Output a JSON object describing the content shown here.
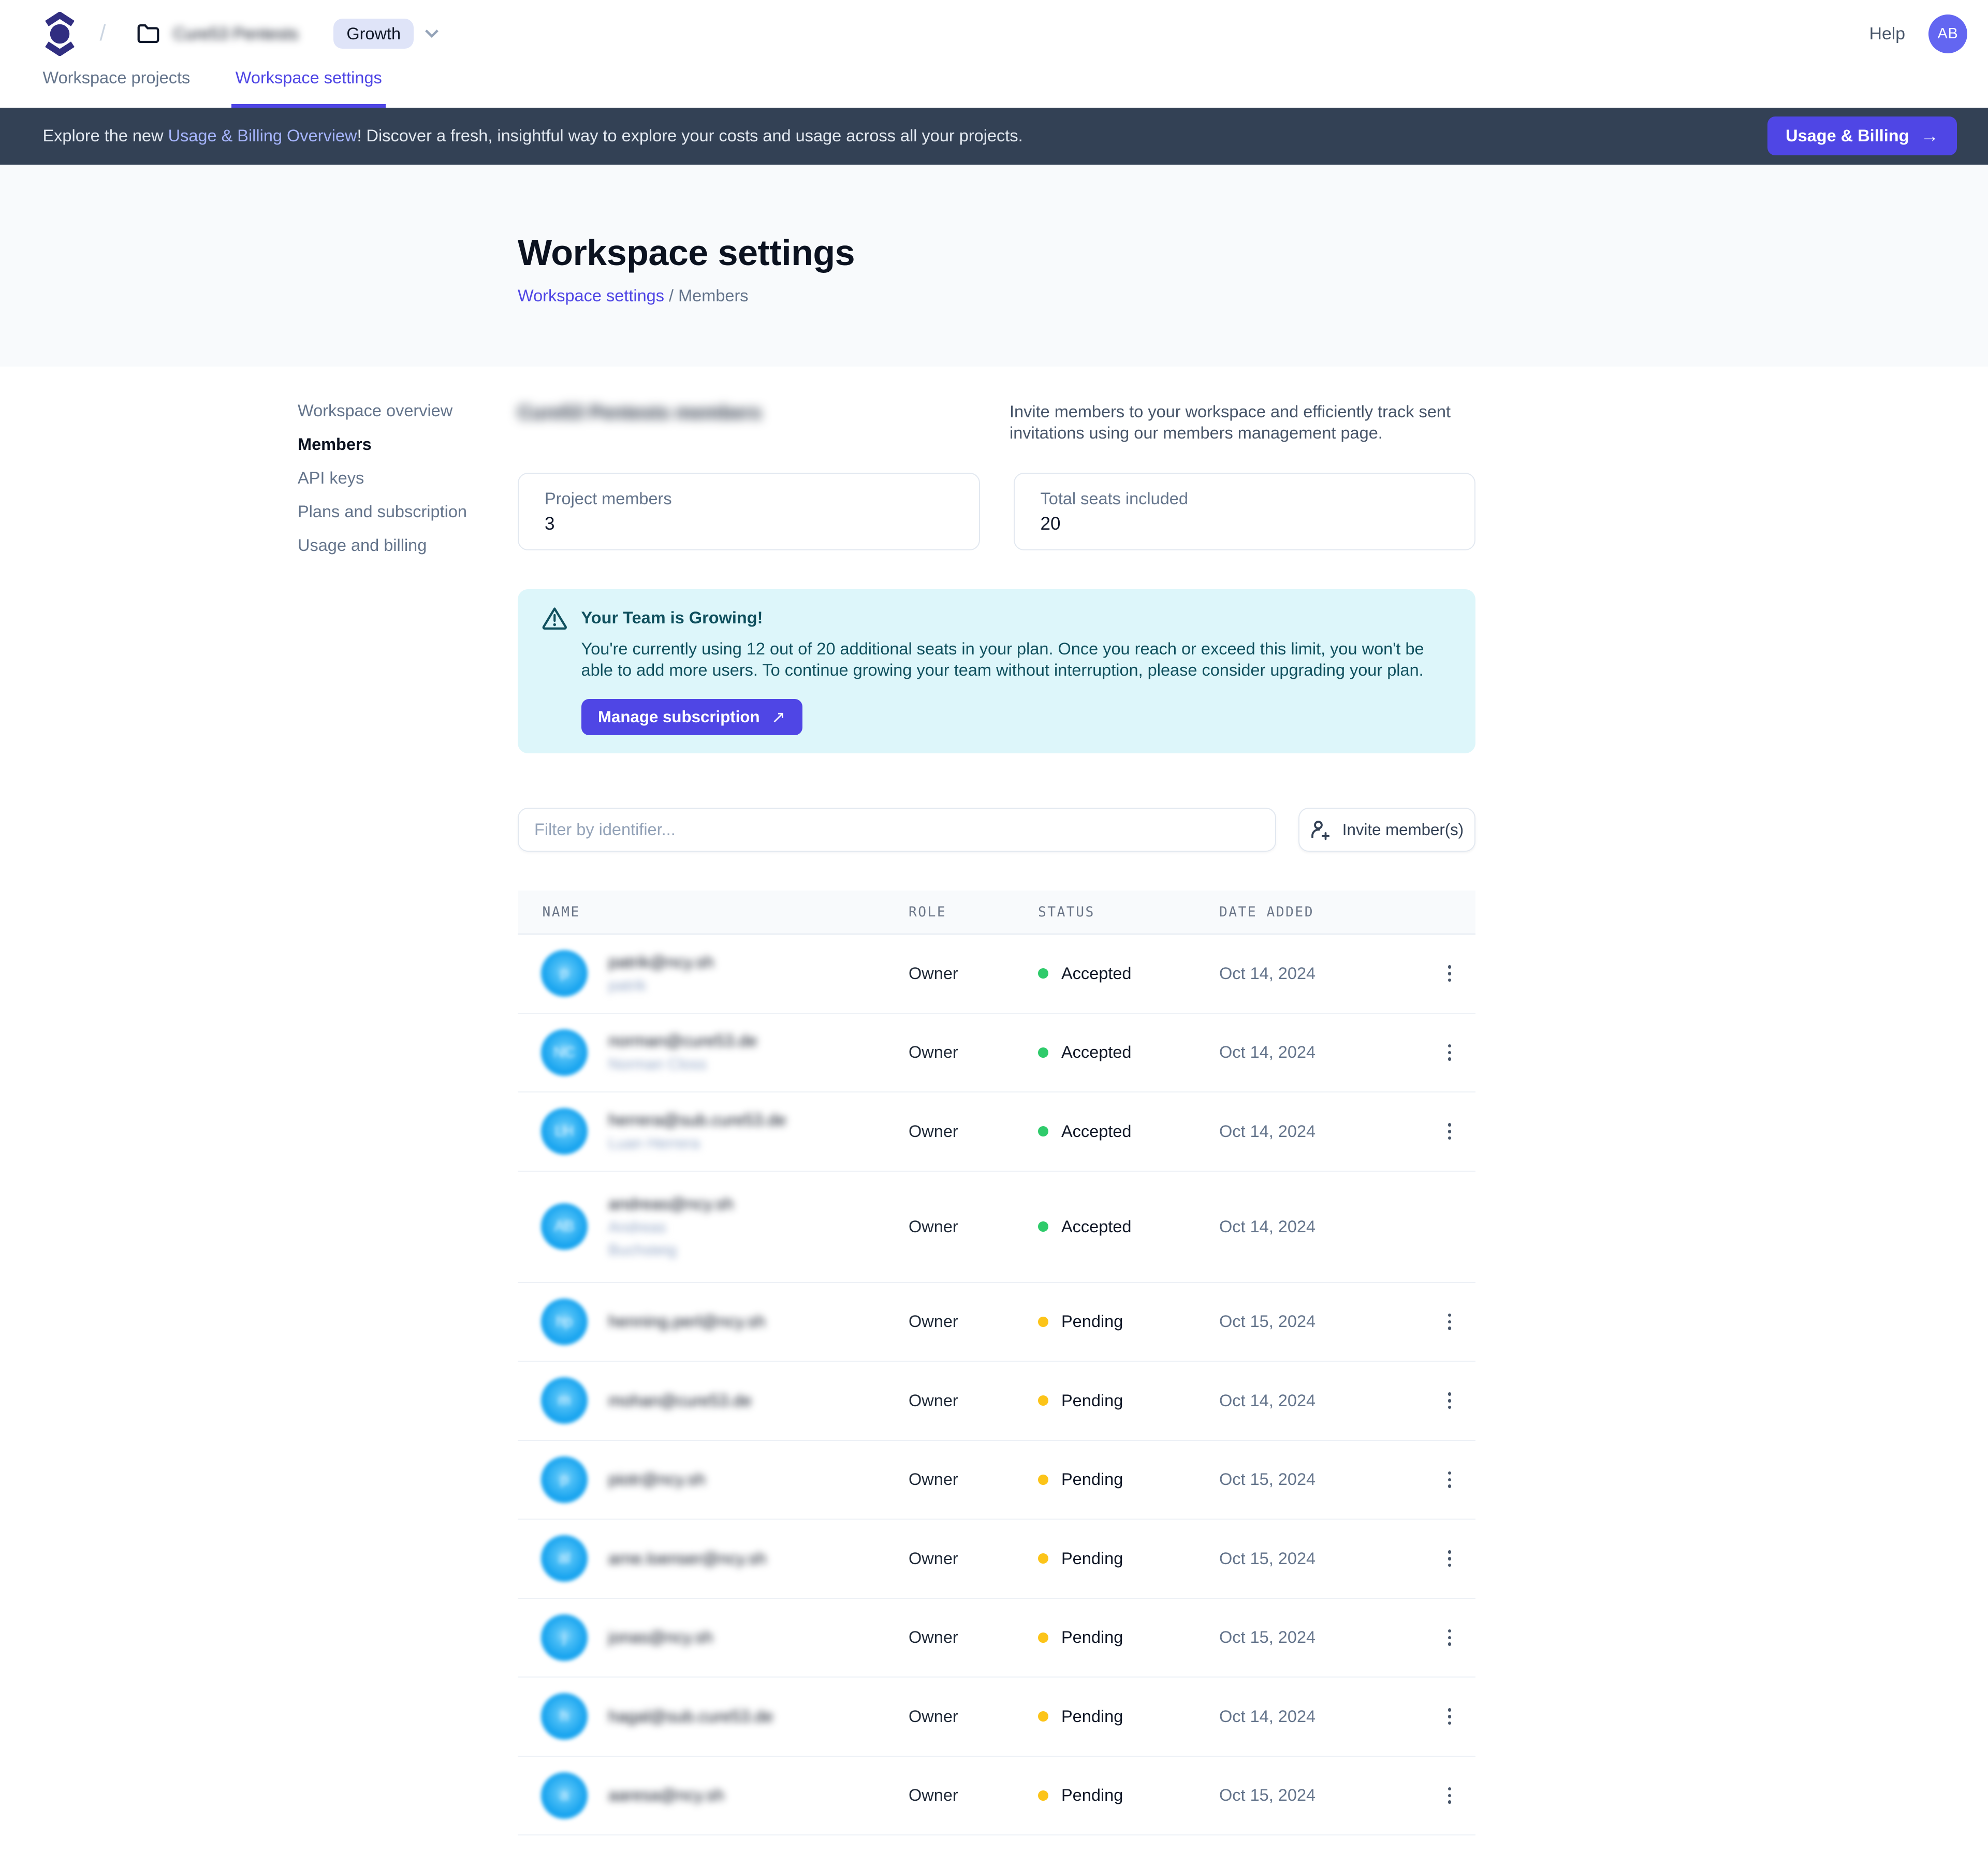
{
  "colors": {
    "accent": "#4f46e5",
    "accent_light": "#a5b4fc",
    "banner_bg": "#334155",
    "alert_bg": "#ddf6fa",
    "alert_text": "#10505e",
    "status_accepted": "#2fcb6b",
    "status_pending": "#fcc419",
    "avatar_member": "#18a4ef",
    "avatar_user": "#6366f1",
    "logo": "#312e81",
    "badge_bg": "#dfe4f8"
  },
  "topbar": {
    "breadcrumb_slash": "/",
    "workspace_name_redacted": "Cure53 Pentests",
    "plan_badge": "Growth",
    "help_label": "Help",
    "avatar_initials": "AB"
  },
  "tabs": [
    {
      "label": "Workspace projects",
      "active": false
    },
    {
      "label": "Workspace settings",
      "active": true
    }
  ],
  "banner": {
    "text_prefix": "Explore the new ",
    "link_text": "Usage & Billing Overview",
    "text_suffix": "! Discover a fresh, insightful way to explore your costs and usage across all your projects.",
    "button_label": "Usage & Billing",
    "button_arrow": "→"
  },
  "hero": {
    "title": "Workspace settings",
    "breadcrumb_link": "Workspace settings",
    "breadcrumb_separator": "/",
    "breadcrumb_current": "Members"
  },
  "sidebar": {
    "items": [
      {
        "label": "Workspace overview",
        "active": false
      },
      {
        "label": "Members",
        "active": true
      },
      {
        "label": "API keys",
        "active": false
      },
      {
        "label": "Plans and subscription",
        "active": false
      },
      {
        "label": "Usage and billing",
        "active": false
      }
    ]
  },
  "members": {
    "heading_redacted": "Cure53 Pentests members",
    "description": "Invite members to your workspace and efficiently track sent invitations using our members management page.",
    "stats": [
      {
        "label": "Project members",
        "value": "3"
      },
      {
        "label": "Total seats included",
        "value": "20"
      }
    ],
    "alert": {
      "title": "Your Team is Growing!",
      "body": "You're currently using 12 out of 20 additional seats in your plan. Once you reach or exceed this limit, you won't be able to add more users. To continue growing your team without interruption, please consider upgrading your plan.",
      "button_label": "Manage subscription",
      "button_arrow": "↗"
    },
    "filter_placeholder": "Filter by identifier...",
    "invite_button_label": "Invite member(s)"
  },
  "table": {
    "columns": [
      "NAME",
      "ROLE",
      "STATUS",
      "DATE ADDED"
    ],
    "rows": [
      {
        "identifier_redacted": "patrik@ncy.sh",
        "secondary_redacted": [
          "patrik"
        ],
        "initials_redacted": "p",
        "role": "Owner",
        "status": "Accepted",
        "date": "Oct 14, 2024",
        "has_menu": true
      },
      {
        "identifier_redacted": "norman@cure53.de",
        "secondary_redacted": [
          "Norman Closs"
        ],
        "initials_redacted": "NC",
        "role": "Owner",
        "status": "Accepted",
        "date": "Oct 14, 2024",
        "has_menu": true
      },
      {
        "identifier_redacted": "herrera@sub.cure53.de",
        "secondary_redacted": [
          "Luan Herrera"
        ],
        "initials_redacted": "LH",
        "role": "Owner",
        "status": "Accepted",
        "date": "Oct 14, 2024",
        "has_menu": true
      },
      {
        "identifier_redacted": "andreas@ncy.sh",
        "secondary_redacted": [
          "Andreas",
          "Buchsteig"
        ],
        "initials_redacted": "AB",
        "role": "Owner",
        "status": "Accepted",
        "date": "Oct 14, 2024",
        "has_menu": false
      },
      {
        "identifier_redacted": "henning.perl@ncy.sh",
        "secondary_redacted": [],
        "initials_redacted": "hp",
        "role": "Owner",
        "status": "Pending",
        "date": "Oct 15, 2024",
        "has_menu": true
      },
      {
        "identifier_redacted": "mohan@cure53.de",
        "secondary_redacted": [],
        "initials_redacted": "m",
        "role": "Owner",
        "status": "Pending",
        "date": "Oct 14, 2024",
        "has_menu": true
      },
      {
        "identifier_redacted": "piotr@ncy.sh",
        "secondary_redacted": [],
        "initials_redacted": "p",
        "role": "Owner",
        "status": "Pending",
        "date": "Oct 15, 2024",
        "has_menu": true
      },
      {
        "identifier_redacted": "arne.loenser@ncy.sh",
        "secondary_redacted": [],
        "initials_redacted": "al",
        "role": "Owner",
        "status": "Pending",
        "date": "Oct 15, 2024",
        "has_menu": true
      },
      {
        "identifier_redacted": "jonas@ncy.sh",
        "secondary_redacted": [],
        "initials_redacted": "j",
        "role": "Owner",
        "status": "Pending",
        "date": "Oct 15, 2024",
        "has_menu": true
      },
      {
        "identifier_redacted": "hagal@sub.cure53.de",
        "secondary_redacted": [],
        "initials_redacted": "h",
        "role": "Owner",
        "status": "Pending",
        "date": "Oct 14, 2024",
        "has_menu": true
      },
      {
        "identifier_redacted": "aaresa@ncy.sh",
        "secondary_redacted": [],
        "initials_redacted": "a",
        "role": "Owner",
        "status": "Pending",
        "date": "Oct 15, 2024",
        "has_menu": true
      }
    ]
  }
}
